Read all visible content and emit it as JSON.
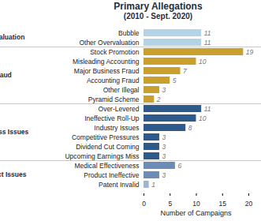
{
  "chart_data": {
    "type": "bar",
    "title": "Primary Allegations",
    "subtitle": "(2010 - Sept. 2020)",
    "orientation": "horizontal",
    "data_labels": true,
    "xlabel": "Number of Campaigns",
    "categories": [
      "Bubble",
      "Other Overvaluation",
      "Stock Promotion",
      "Misleading Accounting",
      "Major Business Fraud",
      "Accounting Fraud",
      "Other Illegal",
      "Pyramid Scheme",
      "Over-Levered",
      "Ineffective Roll-Up",
      "Industry Issues",
      "Competitive Pressures",
      "Dividend Cut Coming",
      "Upcoming Earnings Miss",
      "Medical Effectiveness",
      "Product Ineffective",
      "Patent Invalid"
    ],
    "groups": [
      "Overvaluation",
      "Overvaluation",
      "Fraud",
      "Fraud",
      "Fraud",
      "Fraud",
      "Fraud",
      "Fraud",
      "Business Issues",
      "Business Issues",
      "Business Issues",
      "Business Issues",
      "Business Issues",
      "Business Issues",
      "Product Issues",
      "Product Issues",
      "Product Issues"
    ],
    "values": [
      11,
      11,
      19,
      10,
      7,
      5,
      3,
      2,
      11,
      10,
      8,
      3,
      3,
      3,
      6,
      3,
      1
    ],
    "colors": [
      "#b4d3e6",
      "#b4d3e6",
      "#c9a02e",
      "#c9a02e",
      "#c9a02e",
      "#c9a02e",
      "#c9a02e",
      "#c9a02e",
      "#2d5a8a",
      "#2d5a8a",
      "#2d5a8a",
      "#2d5a8a",
      "#2d5a8a",
      "#2d5a8a",
      "#6b8db5",
      "#6b8db5",
      "#9fb6d0"
    ],
    "xlim": [
      0,
      20
    ],
    "xticks": [
      0,
      5,
      10,
      15,
      20
    ]
  }
}
